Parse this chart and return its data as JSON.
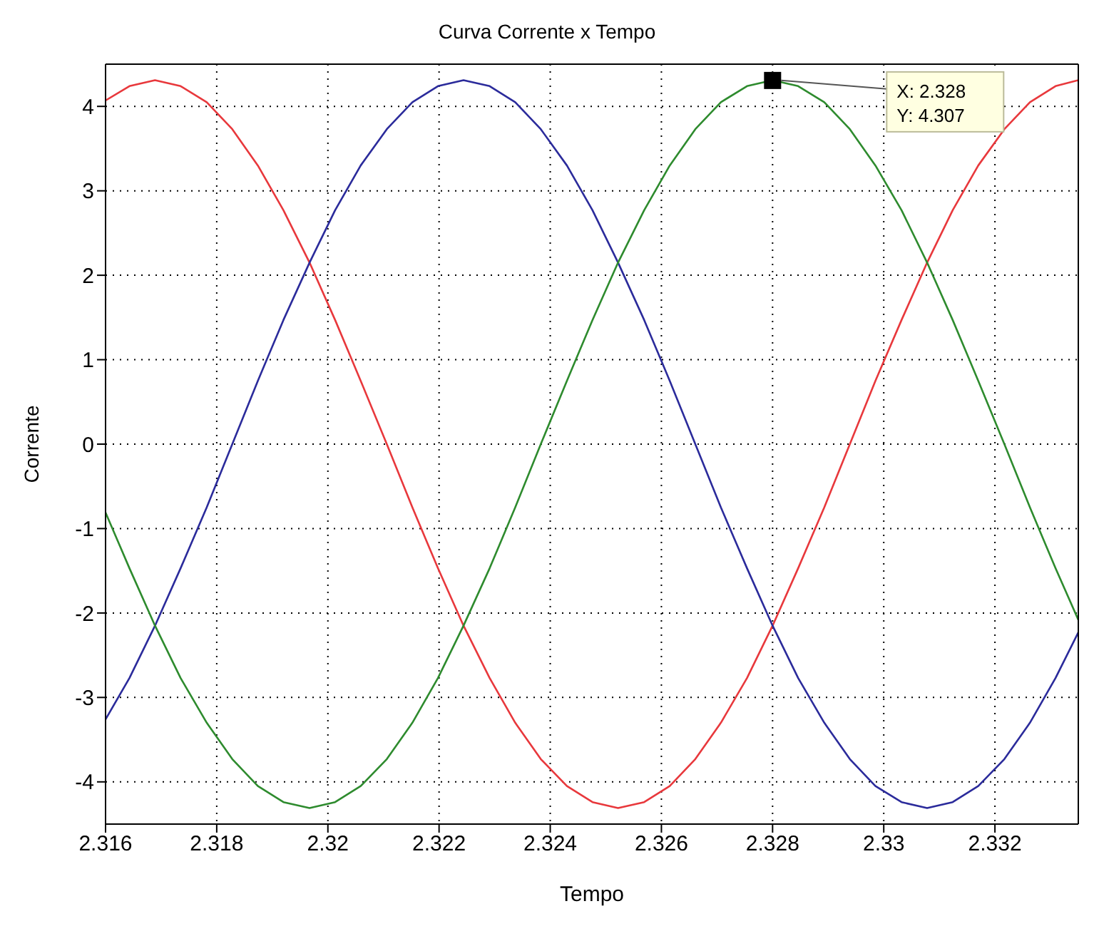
{
  "chart_data": {
    "type": "line",
    "title": "Curva Corrente x Tempo",
    "xlabel": "Tempo",
    "ylabel": "Corrente",
    "x": [
      2.316,
      2.31643,
      2.31689,
      2.31735,
      2.31782,
      2.31828,
      2.31874,
      2.3192,
      2.31967,
      2.32013,
      2.32059,
      2.32106,
      2.32152,
      2.32198,
      2.32244,
      2.32291,
      2.32337,
      2.32383,
      2.3243,
      2.32476,
      2.32522,
      2.32569,
      2.32615,
      2.32661,
      2.32707,
      2.32754,
      2.328,
      2.32846,
      2.32893,
      2.32939,
      2.32985,
      2.33032,
      2.33078,
      2.33124,
      2.3317,
      2.33217,
      2.33263,
      2.33309,
      2.3335
    ],
    "series": [
      {
        "color": "#e8383c",
        "values": [
          4.07,
          4.24,
          4.31,
          4.24,
          4.05,
          3.73,
          3.3,
          2.77,
          2.15,
          1.47,
          0.75,
          0,
          -0.75,
          -1.47,
          -2.15,
          -2.77,
          -3.3,
          -3.73,
          -4.05,
          -4.24,
          -4.31,
          -4.24,
          -4.05,
          -3.73,
          -3.3,
          -2.77,
          -2.15,
          -1.47,
          -0.75,
          0,
          0.75,
          1.47,
          2.15,
          2.77,
          3.3,
          3.73,
          4.05,
          4.24,
          4.31
        ]
      },
      {
        "color": "#2b2b9b",
        "values": [
          -3.26,
          -2.77,
          -2.15,
          -1.47,
          -0.75,
          0,
          0.75,
          1.47,
          2.15,
          2.77,
          3.3,
          3.73,
          4.05,
          4.24,
          4.31,
          4.24,
          4.05,
          3.73,
          3.3,
          2.77,
          2.15,
          1.47,
          0.75,
          0,
          -0.75,
          -1.47,
          -2.15,
          -2.77,
          -3.3,
          -3.73,
          -4.05,
          -4.24,
          -4.31,
          -4.24,
          -4.05,
          -3.73,
          -3.3,
          -2.77,
          -2.23
        ]
      },
      {
        "color": "#2e8b2e",
        "values": [
          -0.81,
          -1.47,
          -2.15,
          -2.77,
          -3.3,
          -3.73,
          -4.05,
          -4.24,
          -4.31,
          -4.24,
          -4.05,
          -3.73,
          -3.3,
          -2.77,
          -2.15,
          -1.47,
          -0.75,
          0,
          0.75,
          1.47,
          2.15,
          2.77,
          3.3,
          3.73,
          4.05,
          4.24,
          4.31,
          4.24,
          4.05,
          3.73,
          3.3,
          2.77,
          2.15,
          1.47,
          0.75,
          0,
          -0.75,
          -1.47,
          -2.08
        ]
      }
    ],
    "xlim": [
      2.316,
      2.3335
    ],
    "xticks": [
      2.316,
      2.318,
      2.32,
      2.322,
      2.324,
      2.326,
      2.328,
      2.33,
      2.332
    ],
    "ylim": [
      -4.5,
      4.5
    ],
    "yticks": [
      -4,
      -3,
      -2,
      -1,
      0,
      1,
      2,
      3,
      4
    ],
    "grid": true,
    "legend": false,
    "marker": "none",
    "line_style": "solid",
    "annotations": [
      {
        "text": "X: 2.328\nY: 4.307",
        "x": 2.328,
        "y": 4.307
      }
    ]
  }
}
